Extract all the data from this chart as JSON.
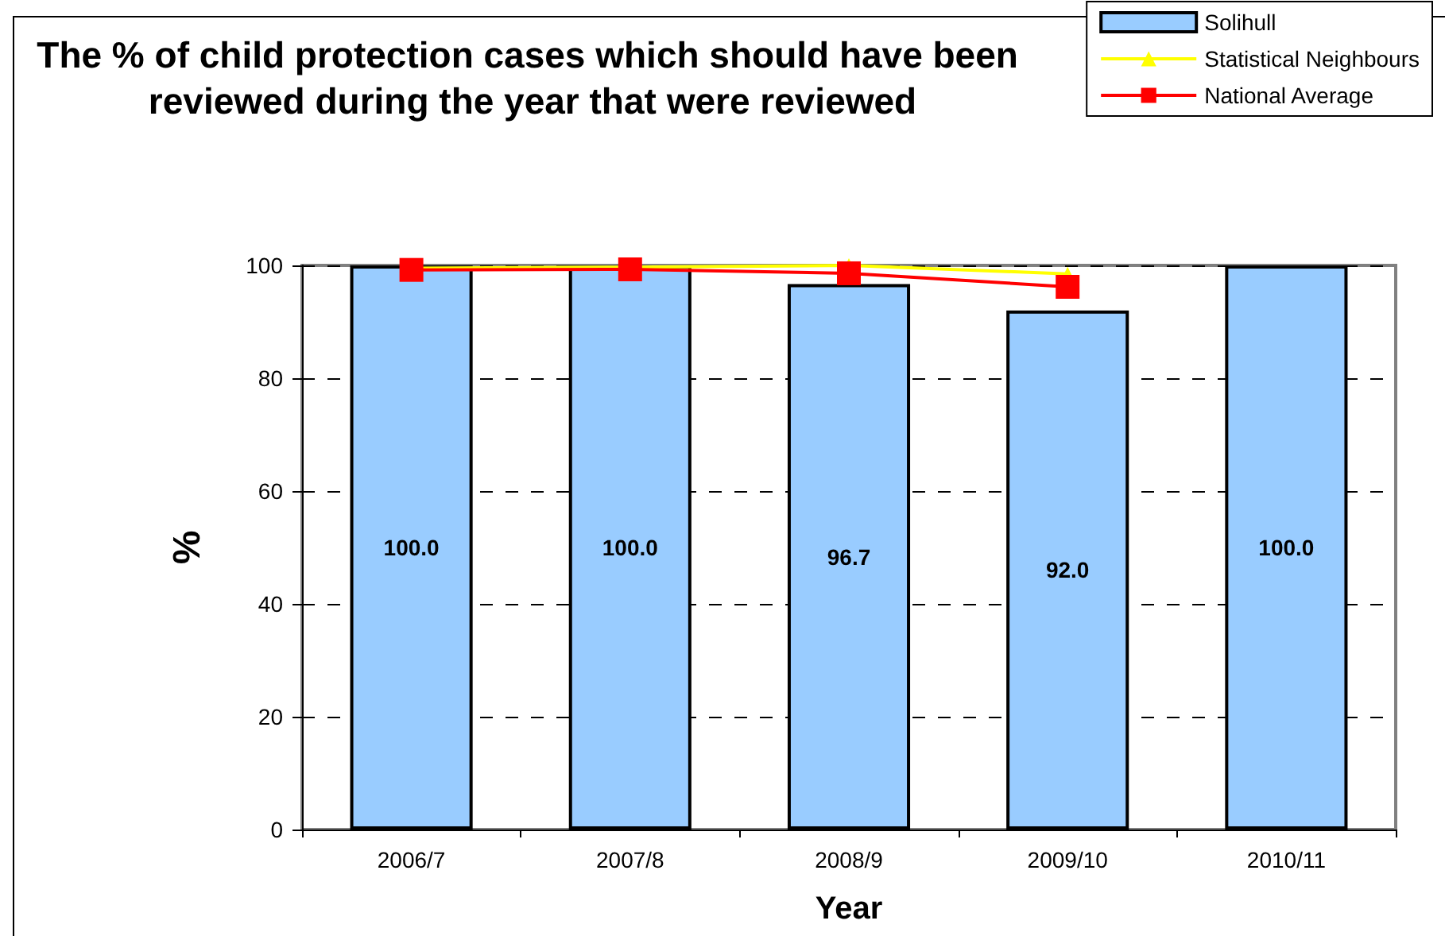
{
  "chart_data": {
    "type": "bar",
    "title": "The % of child protection cases which should have been reviewed during the year that were reviewed",
    "xlabel": "Year",
    "ylabel": "%",
    "categories": [
      "2006/7",
      "2007/8",
      "2008/9",
      "2009/10",
      "2010/11"
    ],
    "series": [
      {
        "name": "Solihull",
        "color": "#99ccff",
        "values": [
          100,
          100,
          96.7,
          92.0,
          100
        ],
        "value_labels": [
          "100.0",
          "100.0",
          "96.7",
          "92.0",
          "100.0"
        ]
      },
      {
        "name": "Statistical Neighbours",
        "type": "line",
        "color": "#ffff00",
        "marker": "triangle",
        "values": [
          99.5,
          99.7,
          100,
          98.5,
          null
        ]
      },
      {
        "name": "National Average",
        "type": "line",
        "color": "#ff0000",
        "marker": "square",
        "values": [
          99.2,
          99.3,
          98.6,
          96.2,
          null
        ]
      }
    ],
    "ylim": [
      0,
      100
    ],
    "yticks": [
      0,
      20,
      40,
      60,
      80,
      100
    ],
    "grid": "y",
    "legend": "top right"
  }
}
